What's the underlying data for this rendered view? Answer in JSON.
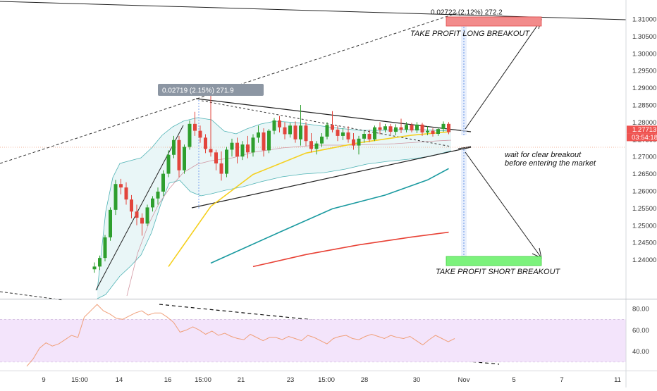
{
  "chart_data": [
    {
      "type": "candlestick",
      "title": "",
      "ylim": [
        1.2375,
        1.3125
      ],
      "x_ticks": [
        "9",
        "15:00",
        "14",
        "16",
        "15:00",
        "21",
        "23",
        "15:00",
        "28",
        "30",
        "Nov",
        "5",
        "7",
        "11"
      ],
      "y_ticks": [
        "1.31000",
        "1.30500",
        "1.30000",
        "1.29500",
        "1.29000",
        "1.28500",
        "1.28000",
        "1.27500",
        "1.27000",
        "1.26500",
        "1.26000",
        "1.25500",
        "1.25000",
        "1.24500",
        "1.24000"
      ],
      "last_price": "1.27713",
      "countdown": "03:54:18",
      "candles": [
        {
          "o": 1.2372,
          "h": 1.2392,
          "l": 1.2362,
          "c": 1.238
        },
        {
          "o": 1.238,
          "h": 1.2412,
          "l": 1.237,
          "c": 1.2405
        },
        {
          "o": 1.2405,
          "h": 1.2472,
          "l": 1.2395,
          "c": 1.2465
        },
        {
          "o": 1.2465,
          "h": 1.2552,
          "l": 1.2455,
          "c": 1.2545
        },
        {
          "o": 1.2545,
          "h": 1.2632,
          "l": 1.253,
          "c": 1.262
        },
        {
          "o": 1.262,
          "h": 1.2635,
          "l": 1.259,
          "c": 1.261
        },
        {
          "o": 1.261,
          "h": 1.2625,
          "l": 1.256,
          "c": 1.2575
        },
        {
          "o": 1.2575,
          "h": 1.2588,
          "l": 1.252,
          "c": 1.254
        },
        {
          "o": 1.254,
          "h": 1.256,
          "l": 1.25,
          "c": 1.2522
        },
        {
          "o": 1.2522,
          "h": 1.2535,
          "l": 1.247,
          "c": 1.2505
        },
        {
          "o": 1.2505,
          "h": 1.256,
          "l": 1.2498,
          "c": 1.2552
        },
        {
          "o": 1.2552,
          "h": 1.2585,
          "l": 1.254,
          "c": 1.2578
        },
        {
          "o": 1.2578,
          "h": 1.261,
          "l": 1.256,
          "c": 1.2598
        },
        {
          "o": 1.2598,
          "h": 1.266,
          "l": 1.2585,
          "c": 1.265
        },
        {
          "o": 1.265,
          "h": 1.2718,
          "l": 1.264,
          "c": 1.2705
        },
        {
          "o": 1.2705,
          "h": 1.276,
          "l": 1.2695,
          "c": 1.2748
        },
        {
          "o": 1.2748,
          "h": 1.276,
          "l": 1.264,
          "c": 1.266
        },
        {
          "o": 1.266,
          "h": 1.2735,
          "l": 1.265,
          "c": 1.2728
        },
        {
          "o": 1.2728,
          "h": 1.2805,
          "l": 1.272,
          "c": 1.2795
        },
        {
          "o": 1.2795,
          "h": 1.283,
          "l": 1.276,
          "c": 1.2775
        },
        {
          "o": 1.2775,
          "h": 1.279,
          "l": 1.274,
          "c": 1.2755
        },
        {
          "o": 1.2755,
          "h": 1.2765,
          "l": 1.271,
          "c": 1.2722
        },
        {
          "o": 1.2722,
          "h": 1.289,
          "l": 1.27,
          "c": 1.2712
        },
        {
          "o": 1.2712,
          "h": 1.272,
          "l": 1.266,
          "c": 1.268
        },
        {
          "o": 1.268,
          "h": 1.2715,
          "l": 1.263,
          "c": 1.265
        },
        {
          "o": 1.265,
          "h": 1.2728,
          "l": 1.264,
          "c": 1.272
        },
        {
          "o": 1.272,
          "h": 1.2752,
          "l": 1.27,
          "c": 1.274
        },
        {
          "o": 1.274,
          "h": 1.2755,
          "l": 1.268,
          "c": 1.27
        },
        {
          "o": 1.27,
          "h": 1.2745,
          "l": 1.269,
          "c": 1.2735
        },
        {
          "o": 1.2735,
          "h": 1.276,
          "l": 1.2695,
          "c": 1.2712
        },
        {
          "o": 1.2712,
          "h": 1.2765,
          "l": 1.27,
          "c": 1.2755
        },
        {
          "o": 1.2755,
          "h": 1.279,
          "l": 1.274,
          "c": 1.277
        },
        {
          "o": 1.277,
          "h": 1.2782,
          "l": 1.27,
          "c": 1.2718
        },
        {
          "o": 1.2718,
          "h": 1.278,
          "l": 1.271,
          "c": 1.2775
        },
        {
          "o": 1.2775,
          "h": 1.2812,
          "l": 1.2765,
          "c": 1.2805
        },
        {
          "o": 1.2805,
          "h": 1.2818,
          "l": 1.277,
          "c": 1.2785
        },
        {
          "o": 1.2785,
          "h": 1.28,
          "l": 1.275,
          "c": 1.2765
        },
        {
          "o": 1.2765,
          "h": 1.2798,
          "l": 1.2755,
          "c": 1.279
        },
        {
          "o": 1.279,
          "h": 1.2802,
          "l": 1.274,
          "c": 1.275
        },
        {
          "o": 1.275,
          "h": 1.285,
          "l": 1.2732,
          "c": 1.279
        },
        {
          "o": 1.279,
          "h": 1.28,
          "l": 1.273,
          "c": 1.2745
        },
        {
          "o": 1.2745,
          "h": 1.2768,
          "l": 1.2712,
          "c": 1.2722
        },
        {
          "o": 1.2722,
          "h": 1.2745,
          "l": 1.2706,
          "c": 1.2738
        },
        {
          "o": 1.2738,
          "h": 1.2768,
          "l": 1.2728,
          "c": 1.2758
        },
        {
          "o": 1.2758,
          "h": 1.28,
          "l": 1.275,
          "c": 1.2792
        },
        {
          "o": 1.2792,
          "h": 1.2832,
          "l": 1.277,
          "c": 1.2778
        },
        {
          "o": 1.2778,
          "h": 1.279,
          "l": 1.2745,
          "c": 1.276
        },
        {
          "o": 1.276,
          "h": 1.2782,
          "l": 1.2748,
          "c": 1.277
        },
        {
          "o": 1.277,
          "h": 1.2788,
          "l": 1.274,
          "c": 1.275
        },
        {
          "o": 1.275,
          "h": 1.2768,
          "l": 1.272,
          "c": 1.2732
        },
        {
          "o": 1.2732,
          "h": 1.276,
          "l": 1.2706,
          "c": 1.2752
        },
        {
          "o": 1.2752,
          "h": 1.2775,
          "l": 1.274,
          "c": 1.2766
        },
        {
          "o": 1.2766,
          "h": 1.2778,
          "l": 1.2742,
          "c": 1.275
        },
        {
          "o": 1.275,
          "h": 1.279,
          "l": 1.2745,
          "c": 1.2785
        },
        {
          "o": 1.2785,
          "h": 1.28,
          "l": 1.2765,
          "c": 1.2778
        },
        {
          "o": 1.2778,
          "h": 1.2795,
          "l": 1.277,
          "c": 1.2788
        },
        {
          "o": 1.2788,
          "h": 1.2795,
          "l": 1.2764,
          "c": 1.2772
        },
        {
          "o": 1.2772,
          "h": 1.2794,
          "l": 1.2762,
          "c": 1.2785
        },
        {
          "o": 1.2785,
          "h": 1.281,
          "l": 1.2768,
          "c": 1.2778
        },
        {
          "o": 1.2778,
          "h": 1.28,
          "l": 1.277,
          "c": 1.2792
        },
        {
          "o": 1.2792,
          "h": 1.2798,
          "l": 1.277,
          "c": 1.2776
        },
        {
          "o": 1.2776,
          "h": 1.28,
          "l": 1.2768,
          "c": 1.2793
        },
        {
          "o": 1.2793,
          "h": 1.2798,
          "l": 1.276,
          "c": 1.277
        },
        {
          "o": 1.277,
          "h": 1.2788,
          "l": 1.2762,
          "c": 1.2775
        },
        {
          "o": 1.2775,
          "h": 1.2782,
          "l": 1.2758,
          "c": 1.2766
        },
        {
          "o": 1.2766,
          "h": 1.2785,
          "l": 1.276,
          "c": 1.278
        },
        {
          "o": 1.278,
          "h": 1.2802,
          "l": 1.2772,
          "c": 1.2795
        },
        {
          "o": 1.2795,
          "h": 1.28,
          "l": 1.2765,
          "c": 1.2771
        }
      ],
      "series": [
        {
          "type": "line",
          "color": "#f5d020",
          "x_index": [
            14,
            22,
            30,
            40,
            50,
            60,
            67
          ],
          "values": [
            1.238,
            1.2555,
            1.2648,
            1.271,
            1.274,
            1.2762,
            1.2772
          ]
        },
        {
          "type": "line",
          "color": "#1a9aa0",
          "x_index": [
            22,
            35,
            45,
            55,
            63,
            67
          ],
          "values": [
            1.239,
            1.248,
            1.2548,
            1.2588,
            1.2632,
            1.2665
          ]
        },
        {
          "type": "line",
          "color": "#e84236",
          "x_index": [
            30,
            40,
            50,
            60,
            67
          ],
          "values": [
            1.238,
            1.2415,
            1.2443,
            1.2466,
            1.248
          ]
        }
      ],
      "annotations": [
        {
          "type": "text",
          "text": "0.02719 (2.15%) 271.9"
        },
        {
          "type": "text",
          "text": "0.02722 (2.12%) 272.2"
        },
        {
          "type": "label",
          "text": "TAKE PROFIT LONG BREAKOUT"
        },
        {
          "type": "label",
          "text": "TAKE PROFIT SHORT BREAKOUT"
        },
        {
          "type": "note",
          "lines": [
            "wait for clear breakout",
            "before entering the market"
          ]
        }
      ]
    },
    {
      "type": "line",
      "title": "",
      "ylim": [
        22,
        88
      ],
      "y_ticks": [
        "80.00",
        "60.00",
        "40.00"
      ],
      "band": [
        30,
        70
      ],
      "values": [
        26,
        33,
        43,
        48,
        45,
        47,
        51,
        55,
        53,
        72,
        78,
        84,
        78,
        75,
        71,
        70,
        73,
        76,
        78,
        74,
        76,
        76,
        72,
        67,
        58,
        60,
        63,
        60,
        56,
        59,
        55,
        57,
        54,
        52,
        51,
        56,
        53,
        50,
        53,
        53,
        51,
        54,
        52,
        50,
        55,
        53,
        50,
        47,
        52,
        54,
        55,
        52,
        51,
        54,
        56,
        54,
        52,
        55,
        53,
        52,
        54,
        50,
        46,
        51,
        55,
        52,
        49,
        52
      ]
    }
  ]
}
